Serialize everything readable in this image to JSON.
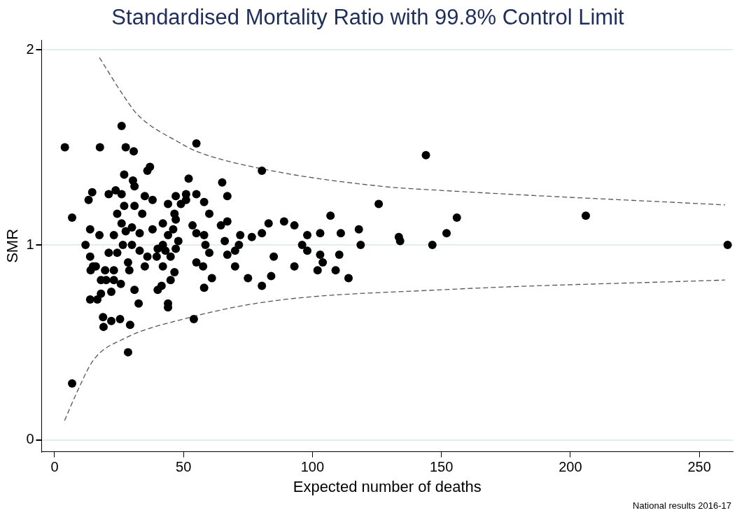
{
  "chart_data": {
    "type": "scatter",
    "title": "Standardised Mortality Ratio with 99.8% Control Limit",
    "xlabel": "Expected number of deaths",
    "ylabel": "SMR",
    "annotations": [
      "National results 2016-17"
    ],
    "xlim": [
      -5,
      263
    ],
    "xticks": [
      0,
      50,
      100,
      150,
      200,
      250
    ],
    "ylim": [
      -0.06,
      2.05
    ],
    "yticks": [
      0,
      1,
      2
    ],
    "grid": "y",
    "legend": false,
    "marker": "circle",
    "series": [
      {
        "type": "scatter",
        "color": "#000000",
        "x": [
          4,
          6.8,
          6.8,
          17.6,
          26,
          30.7,
          27.6,
          55,
          80.4,
          144,
          125.7,
          206,
          261,
          156,
          152,
          146.5,
          133.5,
          134,
          118.7,
          118,
          114,
          111,
          110.4,
          107,
          109,
          104,
          103,
          103,
          102,
          98,
          98,
          96,
          93,
          93,
          89,
          85,
          84,
          83,
          80.4,
          80.4,
          76.5,
          75,
          72,
          71.5,
          70,
          70,
          67,
          67,
          67,
          66,
          65,
          64.5,
          60,
          60,
          61,
          57.6,
          58,
          58.5,
          58,
          58,
          55,
          55,
          54,
          55,
          53.5,
          52,
          51,
          51,
          49,
          48,
          47,
          47,
          47,
          46.5,
          46.5,
          46,
          45,
          45,
          44,
          44,
          43,
          42,
          42,
          42,
          41.5,
          44,
          44,
          40,
          40,
          39.6,
          38,
          38,
          37,
          36,
          36,
          35,
          35,
          34,
          33,
          33,
          32.6,
          31,
          31,
          31,
          30.4,
          30,
          30,
          29.3,
          29,
          28.5,
          28.5,
          27.6,
          27,
          27,
          26.5,
          26,
          26,
          25.7,
          25.4,
          24.3,
          24.3,
          23.7,
          23,
          23,
          23,
          22,
          22,
          21,
          21,
          20,
          19.6,
          19,
          18.8,
          18,
          18,
          17.4,
          16.6,
          16,
          14.9,
          14.6,
          14,
          13.8,
          13.8,
          13.2,
          12,
          13.8
        ],
        "values": [
          1.5,
          1.14,
          0.29,
          1.5,
          1.61,
          1.48,
          1.5,
          1.52,
          1.38,
          1.46,
          1.21,
          1.15,
          1,
          1.14,
          1.06,
          1,
          1.04,
          1.02,
          1,
          1.08,
          0.83,
          1.06,
          0.95,
          1.15,
          0.87,
          0.91,
          1.06,
          0.95,
          0.87,
          1.05,
          0.97,
          1,
          1.1,
          0.89,
          1.12,
          0.94,
          0.84,
          1.11,
          0.79,
          1.06,
          1.04,
          0.83,
          1.05,
          1,
          0.89,
          0.97,
          0.95,
          1.12,
          1.25,
          1.02,
          1.32,
          1.1,
          0.96,
          1.16,
          0.83,
          0.89,
          0.78,
          1,
          1.05,
          1.22,
          1.06,
          0.91,
          0.62,
          1.26,
          1.1,
          1.34,
          1.23,
          1.26,
          1.21,
          1.02,
          1.13,
          0.98,
          1.25,
          1.16,
          0.86,
          1.08,
          0.94,
          0.82,
          1.05,
          1.21,
          0.97,
          1,
          1.11,
          0.89,
          0.79,
          0.7,
          0.68,
          0.98,
          0.77,
          0.94,
          1.08,
          1.23,
          1.4,
          1.38,
          0.94,
          0.89,
          1.25,
          1.16,
          1.06,
          0.97,
          0.7,
          0.77,
          1.2,
          1.3,
          1.33,
          1,
          1.09,
          0.59,
          0.87,
          0.45,
          0.91,
          1.07,
          1.2,
          1.36,
          1,
          1.26,
          1.11,
          0.8,
          0.62,
          0.96,
          1.16,
          1.28,
          1.05,
          0.87,
          0.82,
          0.76,
          0.61,
          0.96,
          1.26,
          0.82,
          0.87,
          0.58,
          0.63,
          0.75,
          0.82,
          1.05,
          0.72,
          0.89,
          0.89,
          1.27,
          0.87,
          0.94,
          1.08,
          1.23,
          1,
          0.72
        ]
      },
      {
        "type": "line",
        "color": "#555555",
        "marker": "none",
        "line_style": "dashed",
        "x": [
          17.4,
          27,
          32,
          49,
          55,
          80.4,
          127,
          149,
          260
        ],
        "values": [
          1.96,
          1.76,
          1.67,
          1.52,
          1.48,
          1.39,
          1.3,
          1.28,
          1.205
        ]
      },
      {
        "type": "line",
        "color": "#555555",
        "marker": "none",
        "line_style": "dashed",
        "x": [
          3.9,
          8.5,
          15.1,
          27,
          50,
          83,
          150,
          260
        ],
        "values": [
          0.1,
          0.24,
          0.41,
          0.52,
          0.62,
          0.71,
          0.77,
          0.82
        ]
      }
    ]
  }
}
